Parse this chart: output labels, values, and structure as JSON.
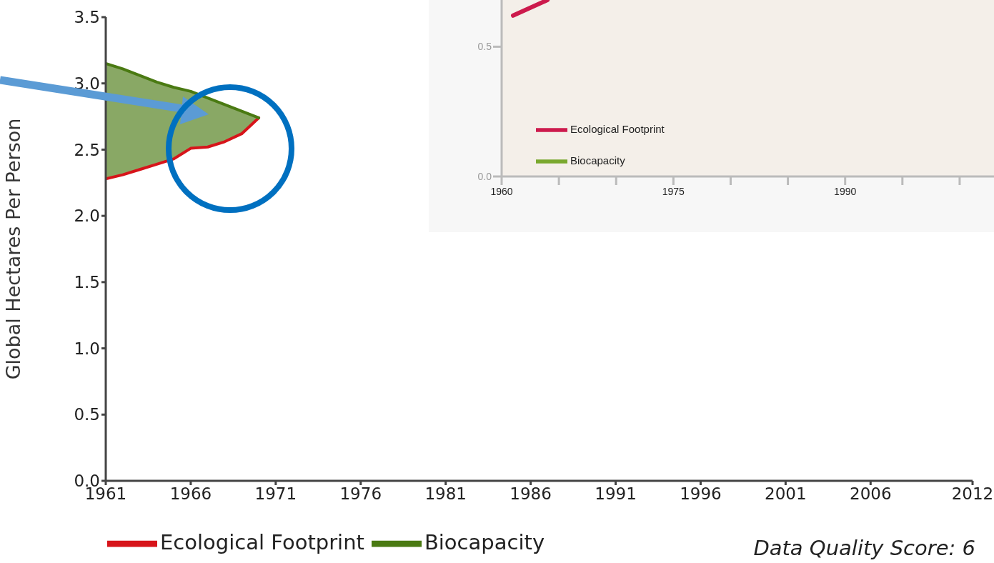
{
  "chart_data": [
    {
      "type": "line",
      "ylabel": "Global Hectares Per Person",
      "annotations": [
        "Data Quality Score: 6"
      ],
      "legend": "bottom",
      "x": [
        1961,
        1962,
        1963,
        1964,
        1965,
        1966,
        1967,
        1968,
        1969,
        1970
      ],
      "series": [
        {
          "name": "Ecological Footprint",
          "color": "#d7141a",
          "values": [
            2.28,
            2.31,
            2.35,
            2.39,
            2.43,
            2.51,
            2.52,
            2.56,
            2.62,
            2.74
          ]
        },
        {
          "name": "Biocapacity",
          "color": "#4a7a12",
          "values": [
            3.15,
            3.11,
            3.06,
            3.01,
            2.97,
            2.94,
            2.89,
            2.84,
            2.79,
            2.74
          ],
          "lower": [
            2.28,
            2.31,
            2.35,
            2.39,
            2.43,
            2.51,
            2.52,
            2.56,
            2.62,
            2.74
          ],
          "upper": [
            3.15,
            3.11,
            3.06,
            3.01,
            2.97,
            2.94,
            2.89,
            2.84,
            2.79,
            2.74
          ]
        }
      ],
      "xlim": [
        1961,
        2012
      ],
      "xticks": [
        1961,
        1966,
        1971,
        1976,
        1981,
        1986,
        1991,
        1996,
        2001,
        2006,
        2012
      ],
      "ylim": [
        0,
        3.5
      ],
      "yticks": [
        {
          "value": 0,
          "label": "0.0"
        },
        0.5,
        {
          "value": 1,
          "label": "1.0"
        },
        1.5,
        {
          "value": 2,
          "label": "2.0"
        },
        2.5,
        {
          "value": 3,
          "label": "3.0"
        },
        3.5
      ]
    },
    {
      "type": "line",
      "legend": "bottom left",
      "x": [
        1961,
        1962,
        1963,
        1964
      ],
      "series": [
        {
          "name": "Ecological Footprint",
          "color": "#cc1a4c",
          "values": [
            0.62,
            0.64,
            0.66,
            0.68
          ]
        },
        {
          "name": "Biocapacity",
          "color": "#7aa82e",
          "values": [
            null,
            null,
            null,
            null
          ]
        }
      ],
      "xlim": [
        1960,
        2003
      ],
      "xticks": [
        1960,
        {
          "value": 1965,
          "label": null
        },
        {
          "value": 1970,
          "label": null
        },
        1975,
        {
          "value": 1980,
          "label": null
        },
        {
          "value": 1985,
          "label": null
        },
        1990,
        {
          "value": 1995,
          "label": null
        },
        {
          "value": 2000,
          "label": null
        }
      ],
      "ylim": [
        0,
        0.68
      ],
      "yticks": [
        {
          "value": 0,
          "label": "0.0"
        },
        0.5
      ]
    }
  ]
}
